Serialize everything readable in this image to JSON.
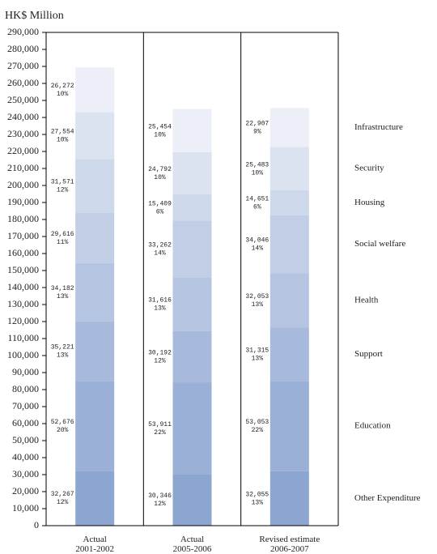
{
  "chart_data": {
    "type": "stacked_bar",
    "title": "HK$ Million",
    "categories": [
      "Actual\n2001-2002",
      "Actual\n2005-2006",
      "Revised estimate\n2006-2007"
    ],
    "series": [
      {
        "name": "Other Expenditure",
        "color": "#8da5d1",
        "values": [
          32267,
          30346,
          32055
        ],
        "value_labels": [
          "32,267",
          "30,346",
          "32,055"
        ],
        "share_labels": [
          "12%",
          "12%",
          "13%"
        ]
      },
      {
        "name": "Education",
        "color": "#9ab0d6",
        "values": [
          52676,
          53911,
          53053
        ],
        "value_labels": [
          "52,676",
          "53,911",
          "53,053"
        ],
        "share_labels": [
          "20%",
          "22%",
          "22%"
        ]
      },
      {
        "name": "Support",
        "color": "#a8badc",
        "values": [
          35221,
          30192,
          31315
        ],
        "value_labels": [
          "35,221",
          "30,192",
          "31,315"
        ],
        "share_labels": [
          "13%",
          "12%",
          "13%"
        ]
      },
      {
        "name": "Health",
        "color": "#b5c4e1",
        "values": [
          34182,
          31616,
          32053
        ],
        "value_labels": [
          "34,182",
          "31,616",
          "32,053"
        ],
        "share_labels": [
          "13%",
          "13%",
          "13%"
        ]
      },
      {
        "name": "Social welfare",
        "color": "#c2cee6",
        "values": [
          29616,
          33262,
          34046
        ],
        "value_labels": [
          "29,616",
          "33,262",
          "34,046"
        ],
        "share_labels": [
          "11%",
          "14%",
          "14%"
        ]
      },
      {
        "name": "Housing",
        "color": "#ced8eb",
        "values": [
          31571,
          15409,
          14651
        ],
        "value_labels": [
          "31,571",
          "15,409",
          "14,651"
        ],
        "share_labels": [
          "12%",
          "6%",
          "6%"
        ]
      },
      {
        "name": "Security",
        "color": "#dbe2f0",
        "values": [
          27554,
          24792,
          25483
        ],
        "value_labels": [
          "27,554",
          "24,792",
          "25,483"
        ],
        "share_labels": [
          "10%",
          "10%",
          "10%"
        ]
      },
      {
        "name": "Infrastructure",
        "color": "#eceff7",
        "values": [
          26272,
          25454,
          22907
        ],
        "value_labels": [
          "26,272",
          "25,454",
          "22,907"
        ],
        "share_labels": [
          "10%",
          "10%",
          "9%"
        ]
      }
    ],
    "ylim": [
      0,
      290000
    ],
    "yticks": [
      0,
      {
        "value": 10000,
        "label": "10,000"
      },
      {
        "value": 20000,
        "label": "20,000"
      },
      {
        "value": 30000,
        "label": "30,000"
      },
      {
        "value": 40000,
        "label": "40,000"
      },
      {
        "value": 50000,
        "label": "50,000"
      },
      {
        "value": 60000,
        "label": "60,000"
      },
      {
        "value": 70000,
        "label": "70,000"
      },
      {
        "value": 80000,
        "label": "80,000"
      },
      {
        "value": 90000,
        "label": "90,000"
      },
      {
        "value": 100000,
        "label": "100,000"
      },
      {
        "value": 110000,
        "label": "110,000"
      },
      {
        "value": 120000,
        "label": "120,000"
      },
      {
        "value": 130000,
        "label": "130,000"
      },
      {
        "value": 140000,
        "label": "140,000"
      },
      {
        "value": 150000,
        "label": "150,000"
      },
      {
        "value": 160000,
        "label": "160,000"
      },
      {
        "value": 170000,
        "label": "170,000"
      },
      {
        "value": 180000,
        "label": "180,000"
      },
      {
        "value": 190000,
        "label": "190,000"
      },
      {
        "value": 200000,
        "label": "200,000"
      },
      {
        "value": 210000,
        "label": "210,000"
      },
      {
        "value": 220000,
        "label": "220,000"
      },
      {
        "value": 230000,
        "label": "230,000"
      },
      {
        "value": 240000,
        "label": "240,000"
      },
      {
        "value": 250000,
        "label": "250,000"
      },
      {
        "value": 260000,
        "label": "260,000"
      },
      {
        "value": 270000,
        "label": "270,000"
      },
      {
        "value": 280000,
        "label": "280,000"
      },
      {
        "value": 290000,
        "label": "290,000"
      }
    ],
    "legend": "right"
  }
}
